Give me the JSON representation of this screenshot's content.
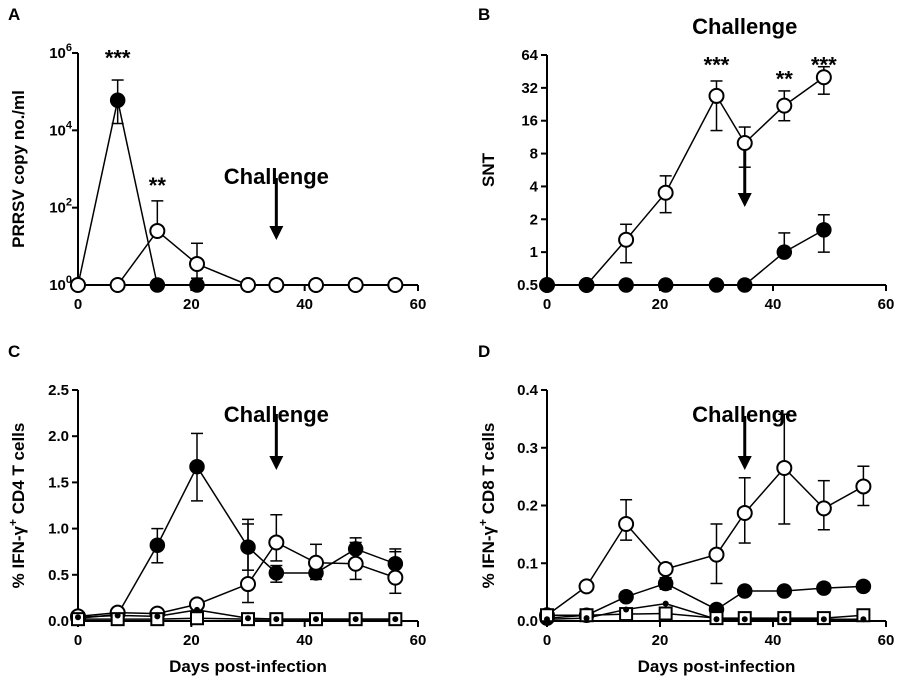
{
  "chart_data": [
    {
      "panel": "A",
      "type": "line",
      "ylabel": "PRRSV copy no./ml",
      "xlabel": "",
      "yscale": "log10",
      "xlim": [
        0,
        60
      ],
      "ylim": [
        1,
        1000000
      ],
      "xticks": [
        0,
        20,
        40,
        60
      ],
      "xtick_labels": [
        "0",
        "20",
        "40",
        "60"
      ],
      "yticks": [
        1,
        100,
        10000,
        1000000
      ],
      "ytick_labels": [
        {
          "base": "10",
          "exp": "0"
        },
        {
          "base": "10",
          "exp": "2"
        },
        {
          "base": "10",
          "exp": "4"
        },
        {
          "base": "10",
          "exp": "6"
        }
      ],
      "challenge": {
        "label": "Challenge",
        "x": 35
      },
      "series": [
        {
          "name": "filled-circle",
          "marker": "filled-circle",
          "x": [
            0,
            7,
            14,
            21,
            30,
            35,
            42,
            49,
            56
          ],
          "values": [
            1,
            60000,
            1,
            1,
            1,
            1,
            1,
            1,
            1
          ],
          "upper": [
            null,
            200000,
            null,
            null,
            null,
            null,
            null,
            null,
            null
          ],
          "lower": [
            null,
            15000,
            null,
            null,
            null,
            null,
            null,
            null,
            null
          ]
        },
        {
          "name": "open-circle",
          "marker": "open-circle",
          "x": [
            0,
            7,
            14,
            21,
            30,
            35,
            42,
            49,
            56
          ],
          "values": [
            1,
            1,
            25,
            3.5,
            1,
            1,
            1,
            1,
            1
          ],
          "upper": [
            null,
            null,
            150,
            12,
            null,
            null,
            null,
            null,
            null
          ],
          "lower": [
            null,
            null,
            null,
            1.5,
            null,
            null,
            null,
            null,
            null
          ]
        }
      ],
      "annotations": [
        {
          "text": "***",
          "x": 7,
          "y": 600000
        },
        {
          "text": "**",
          "x": 14,
          "y": 300
        }
      ]
    },
    {
      "panel": "B",
      "type": "line",
      "ylabel": "SNT",
      "xlabel": "",
      "yscale": "log2",
      "xlim": [
        0,
        60
      ],
      "ylim": [
        0.5,
        64
      ],
      "xticks": [
        0,
        20,
        40,
        60
      ],
      "xtick_labels": [
        "0",
        "20",
        "40",
        "60"
      ],
      "yticks": [
        0.5,
        1,
        2,
        4,
        8,
        16,
        32,
        64
      ],
      "ytick_labels": [
        "0.5",
        "1",
        "2",
        "4",
        "8",
        "16",
        "32",
        "64"
      ],
      "challenge": {
        "label": "Challenge",
        "x": 35
      },
      "series": [
        {
          "name": "open-circle",
          "marker": "open-circle",
          "x": [
            0,
            7,
            14,
            21,
            30,
            35,
            42,
            49
          ],
          "values": [
            0.5,
            0.5,
            1.3,
            3.5,
            27,
            10,
            22,
            40
          ],
          "upper": [
            null,
            null,
            1.8,
            5,
            37,
            14,
            30,
            50
          ],
          "lower": [
            null,
            null,
            0.8,
            2.3,
            13,
            6,
            16,
            28
          ]
        },
        {
          "name": "filled-circle",
          "marker": "filled-circle",
          "x": [
            0,
            7,
            14,
            21,
            30,
            35,
            42,
            49
          ],
          "values": [
            0.5,
            0.5,
            0.5,
            0.5,
            0.5,
            0.5,
            1,
            1.6
          ],
          "upper": [
            null,
            null,
            null,
            null,
            null,
            null,
            1.5,
            2.2
          ],
          "lower": [
            null,
            null,
            null,
            null,
            null,
            null,
            null,
            1
          ]
        }
      ],
      "annotations": [
        {
          "text": "***",
          "x": 30,
          "y": 48
        },
        {
          "text": "**",
          "x": 42,
          "y": 36
        },
        {
          "text": "***",
          "x": 49,
          "y": 48
        }
      ]
    },
    {
      "panel": "C",
      "type": "line",
      "ylabel_parts": {
        "prefix": "% IFN-γ",
        "sup": "+",
        "suffix": " CD4 T cells"
      },
      "xlabel": "Days post-infection",
      "yscale": "linear",
      "xlim": [
        0,
        60
      ],
      "ylim": [
        0,
        2.5
      ],
      "xticks": [
        0,
        20,
        40,
        60
      ],
      "xtick_labels": [
        "0",
        "20",
        "40",
        "60"
      ],
      "yticks": [
        0,
        0.5,
        1,
        1.5,
        2,
        2.5
      ],
      "ytick_labels": [
        "0.0",
        "0.5",
        "1.0",
        "1.5",
        "2.0",
        "2.5"
      ],
      "challenge": {
        "label": "Challenge",
        "x": 35
      },
      "series": [
        {
          "name": "filled-circle",
          "marker": "filled-circle",
          "x": [
            0,
            7,
            14,
            21,
            30,
            35,
            42,
            49,
            56
          ],
          "values": [
            0.03,
            0.07,
            0.82,
            1.67,
            0.8,
            0.52,
            0.52,
            0.78,
            0.62
          ],
          "upper": [
            null,
            null,
            1.0,
            2.03,
            1.05,
            0.6,
            0.6,
            0.9,
            0.78
          ],
          "lower": [
            null,
            null,
            0.63,
            1.3,
            0.55,
            0.42,
            0.45,
            0.6,
            0.48
          ]
        },
        {
          "name": "open-circle",
          "marker": "open-circle",
          "x": [
            0,
            7,
            14,
            21,
            30,
            35,
            42,
            49,
            56
          ],
          "values": [
            0.05,
            0.09,
            0.08,
            0.18,
            0.4,
            0.85,
            0.63,
            0.62,
            0.47
          ],
          "upper": [
            null,
            null,
            null,
            null,
            1.1,
            1.15,
            0.83,
            0.85,
            0.75
          ],
          "lower": [
            null,
            null,
            null,
            null,
            0.2,
            0.65,
            0.5,
            0.45,
            0.3
          ]
        },
        {
          "name": "open-square",
          "marker": "open-square",
          "x": [
            0,
            7,
            14,
            21,
            30,
            35,
            42,
            49,
            56
          ],
          "values": [
            0.02,
            0.02,
            0.02,
            0.03,
            0.02,
            0.02,
            0.02,
            0.02,
            0.02
          ],
          "upper": [
            null,
            null,
            null,
            null,
            null,
            null,
            null,
            null,
            null
          ],
          "lower": [
            null,
            null,
            null,
            null,
            null,
            null,
            null,
            null,
            null
          ]
        },
        {
          "name": "small-filled-circle",
          "marker": "small-filled-circle",
          "x": [
            0,
            7,
            14,
            21,
            30,
            35,
            42,
            49,
            56
          ],
          "values": [
            0.04,
            0.06,
            0.05,
            0.12,
            0.03,
            0.02,
            0.02,
            0.02,
            0.02
          ],
          "upper": [
            null,
            null,
            null,
            null,
            null,
            null,
            null,
            null,
            null
          ],
          "lower": [
            null,
            null,
            null,
            null,
            null,
            null,
            null,
            null,
            null
          ]
        }
      ],
      "annotations": []
    },
    {
      "panel": "D",
      "type": "line",
      "ylabel_parts": {
        "prefix": "% IFN-γ",
        "sup": "+",
        "suffix": " CD8 T cells"
      },
      "xlabel": "Days post-infection",
      "yscale": "linear",
      "xlim": [
        0,
        60
      ],
      "ylim": [
        0,
        0.4
      ],
      "xticks": [
        0,
        20,
        40,
        60
      ],
      "xtick_labels": [
        "0",
        "20",
        "40",
        "60"
      ],
      "yticks": [
        0,
        0.1,
        0.2,
        0.3,
        0.4
      ],
      "ytick_labels": [
        "0.0",
        "0.1",
        "0.2",
        "0.3",
        "0.4"
      ],
      "challenge": {
        "label": "Challenge",
        "x": 35
      },
      "series": [
        {
          "name": "open-circle",
          "marker": "open-circle",
          "x": [
            0,
            7,
            14,
            21,
            30,
            35,
            42,
            49,
            56
          ],
          "values": [
            0.01,
            0.06,
            0.168,
            0.09,
            0.115,
            0.187,
            0.265,
            0.195,
            0.233
          ],
          "upper": [
            null,
            null,
            0.21,
            0.1,
            0.168,
            0.248,
            0.358,
            0.243,
            0.268
          ],
          "lower": [
            null,
            null,
            0.14,
            null,
            0.065,
            0.135,
            0.168,
            0.158,
            0.2
          ]
        },
        {
          "name": "filled-circle",
          "marker": "filled-circle",
          "x": [
            0,
            7,
            14,
            21,
            30,
            35,
            42,
            49,
            56
          ],
          "values": [
            0.005,
            0.01,
            0.042,
            0.065,
            0.02,
            0.052,
            0.052,
            0.057,
            0.06
          ],
          "upper": [
            null,
            null,
            0.05,
            0.075,
            null,
            null,
            null,
            0.065,
            0.068
          ],
          "lower": [
            null,
            null,
            0.035,
            0.055,
            null,
            null,
            null,
            0.05,
            0.052
          ]
        },
        {
          "name": "open-square",
          "marker": "open-square",
          "x": [
            0,
            7,
            14,
            21,
            30,
            35,
            42,
            49,
            56
          ],
          "values": [
            0.01,
            0.01,
            0.012,
            0.013,
            0.005,
            0.005,
            0.005,
            0.005,
            0.01
          ],
          "upper": [
            null,
            null,
            null,
            null,
            null,
            null,
            null,
            null,
            null
          ],
          "lower": [
            null,
            null,
            null,
            null,
            null,
            null,
            null,
            null,
            null
          ]
        },
        {
          "name": "small-filled-circle",
          "marker": "small-filled-circle",
          "x": [
            0,
            7,
            14,
            21,
            30,
            35,
            42,
            49,
            56
          ],
          "values": [
            0.003,
            0.005,
            0.02,
            0.03,
            0.003,
            0.003,
            0.003,
            0.003,
            0.003
          ],
          "upper": [
            null,
            null,
            null,
            null,
            null,
            null,
            null,
            null,
            null
          ],
          "lower": [
            null,
            null,
            null,
            null,
            null,
            null,
            null,
            null,
            null
          ]
        }
      ],
      "annotations": []
    }
  ]
}
